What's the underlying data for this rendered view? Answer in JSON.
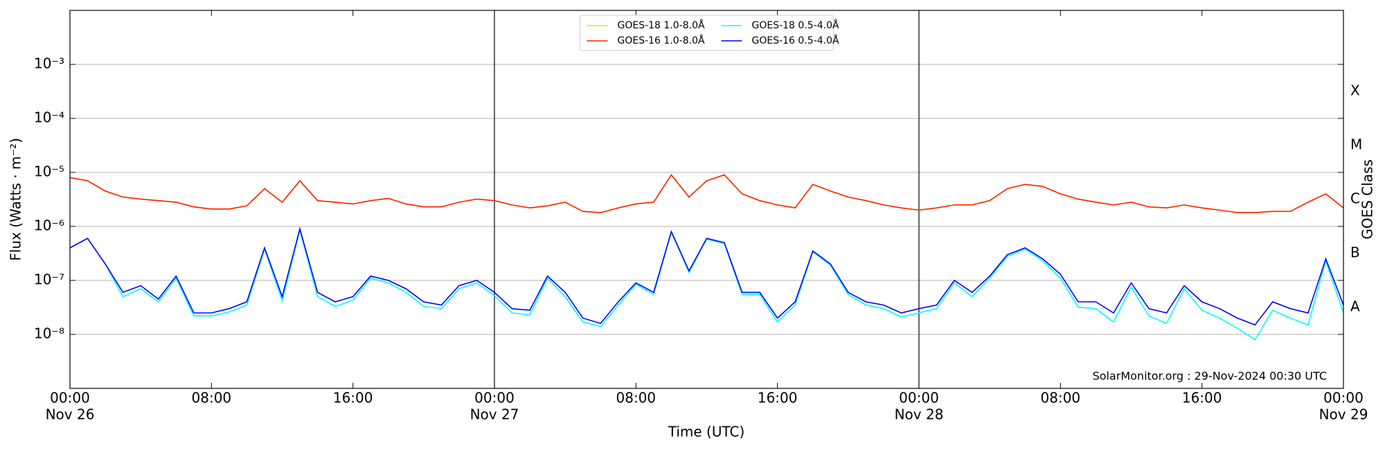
{
  "chart_data": {
    "type": "line",
    "xlabel": "Time (UTC)",
    "ylabel": "Flux (Watts · m⁻²)",
    "y2label": "GOES Class",
    "annotation": "SolarMonitor.org : 29-Nov-2024 00:30 UTC",
    "log_y": true,
    "grid": true,
    "legend": "upper center",
    "xlim": [
      0,
      72
    ],
    "xticks": [
      {
        "value": 0,
        "label": "00:00",
        "date": "Nov 26"
      },
      {
        "value": 8,
        "label": "08:00"
      },
      {
        "value": 16,
        "label": "16:00"
      },
      {
        "value": 24,
        "label": "00:00",
        "date": "Nov 27"
      },
      {
        "value": 32,
        "label": "08:00"
      },
      {
        "value": 40,
        "label": "16:00"
      },
      {
        "value": 48,
        "label": "00:00",
        "date": "Nov 28"
      },
      {
        "value": 56,
        "label": "08:00"
      },
      {
        "value": 64,
        "label": "16:00"
      },
      {
        "value": 72,
        "label": "00:00",
        "date": "Nov 29"
      }
    ],
    "day_lines": [
      24,
      48
    ],
    "ylim": [
      1e-09,
      0.01
    ],
    "yticks": [
      {
        "value": 1e-08,
        "label": "10⁻⁸"
      },
      {
        "value": 1e-07,
        "label": "10⁻⁷"
      },
      {
        "value": 1e-06,
        "label": "10⁻⁶"
      },
      {
        "value": 1e-05,
        "label": "10⁻⁵"
      },
      {
        "value": 0.0001,
        "label": "10⁻⁴"
      },
      {
        "value": 0.001,
        "label": "10⁻³"
      }
    ],
    "class_labels": [
      {
        "value": 3.16e-08,
        "label": "A"
      },
      {
        "value": 3.16e-07,
        "label": "B"
      },
      {
        "value": 3.16e-06,
        "label": "C"
      },
      {
        "value": 3.16e-05,
        "label": "M"
      },
      {
        "value": 0.000316,
        "label": "X"
      }
    ],
    "x": [
      0,
      1,
      2,
      3,
      4,
      5,
      6,
      7,
      8,
      9,
      10,
      11,
      12,
      13,
      14,
      15,
      16,
      17,
      18,
      19,
      20,
      21,
      22,
      23,
      24,
      25,
      26,
      27,
      28,
      29,
      30,
      31,
      32,
      33,
      34,
      35,
      36,
      37,
      38,
      39,
      40,
      41,
      42,
      43,
      44,
      45,
      46,
      47,
      48,
      49,
      50,
      51,
      52,
      53,
      54,
      55,
      56,
      57,
      58,
      59,
      60,
      61,
      62,
      63,
      64,
      65,
      66,
      67,
      68,
      69,
      70,
      71,
      72
    ],
    "series": [
      {
        "name": "GOES-18 1.0-8.0Å",
        "color": "#ffd700",
        "values": [
          8e-06,
          7e-06,
          4.5e-06,
          3.5e-06,
          3.2e-06,
          3e-06,
          2.8e-06,
          2.3e-06,
          2.1e-06,
          2.1e-06,
          2.4e-06,
          5e-06,
          2.8e-06,
          7e-06,
          3e-06,
          2.8e-06,
          2.6e-06,
          3e-06,
          3.3e-06,
          2.6e-06,
          2.3e-06,
          2.3e-06,
          2.8e-06,
          3.2e-06,
          3e-06,
          2.5e-06,
          2.2e-06,
          2.4e-06,
          2.8e-06,
          1.9e-06,
          1.8e-06,
          2.2e-06,
          2.6e-06,
          2.8e-06,
          9e-06,
          3.5e-06,
          7e-06,
          9e-06,
          4e-06,
          3e-06,
          2.5e-06,
          2.2e-06,
          6e-06,
          4.5e-06,
          3.5e-06,
          3e-06,
          2.5e-06,
          2.2e-06,
          2e-06,
          2.2e-06,
          2.5e-06,
          2.5e-06,
          3e-06,
          5e-06,
          6e-06,
          5.5e-06,
          4e-06,
          3.2e-06,
          2.8e-06,
          2.5e-06,
          2.8e-06,
          2.3e-06,
          2.2e-06,
          2.5e-06,
          2.2e-06,
          2e-06,
          1.8e-06,
          1.8e-06,
          1.9e-06,
          1.9e-06,
          2.8e-06,
          4e-06,
          2.2e-06
        ]
      },
      {
        "name": "GOES-16 1.0-8.0Å",
        "color": "#ff2000",
        "values": [
          8e-06,
          7e-06,
          4.5e-06,
          3.5e-06,
          3.2e-06,
          3e-06,
          2.8e-06,
          2.3e-06,
          2.1e-06,
          2.1e-06,
          2.4e-06,
          5e-06,
          2.8e-06,
          7e-06,
          3e-06,
          2.8e-06,
          2.6e-06,
          3e-06,
          3.3e-06,
          2.6e-06,
          2.3e-06,
          2.3e-06,
          2.8e-06,
          3.2e-06,
          3e-06,
          2.5e-06,
          2.2e-06,
          2.4e-06,
          2.8e-06,
          1.9e-06,
          1.8e-06,
          2.2e-06,
          2.6e-06,
          2.8e-06,
          9e-06,
          3.5e-06,
          7e-06,
          9e-06,
          4e-06,
          3e-06,
          2.5e-06,
          2.2e-06,
          6e-06,
          4.5e-06,
          3.5e-06,
          3e-06,
          2.5e-06,
          2.2e-06,
          2e-06,
          2.2e-06,
          2.5e-06,
          2.5e-06,
          3e-06,
          5e-06,
          6e-06,
          5.5e-06,
          4e-06,
          3.2e-06,
          2.8e-06,
          2.5e-06,
          2.8e-06,
          2.3e-06,
          2.2e-06,
          2.5e-06,
          2.2e-06,
          2e-06,
          1.8e-06,
          1.8e-06,
          1.9e-06,
          1.9e-06,
          2.8e-06,
          4e-06,
          2.2e-06
        ]
      },
      {
        "name": "GOES-18 0.5-4.0Å",
        "color": "#00ffff",
        "values": [
          4e-07,
          6e-07,
          2e-07,
          5e-08,
          7e-08,
          4e-08,
          1.1e-07,
          2.2e-08,
          2.2e-08,
          2.6e-08,
          3.5e-08,
          3.8e-07,
          4.2e-08,
          8.5e-07,
          5e-08,
          3.3e-08,
          4.3e-08,
          1.1e-07,
          9e-08,
          6e-08,
          3.3e-08,
          3e-08,
          7e-08,
          9e-08,
          5.2e-08,
          2.5e-08,
          2.3e-08,
          1.1e-07,
          5e-08,
          1.7e-08,
          1.4e-08,
          3.5e-08,
          8.5e-08,
          5.5e-08,
          7.8e-07,
          1.4e-07,
          5.8e-07,
          4.8e-07,
          5.5e-08,
          5.5e-08,
          1.7e-08,
          3.5e-08,
          3.4e-07,
          1.9e-07,
          5.5e-08,
          3.5e-08,
          3e-08,
          2.1e-08,
          2.5e-08,
          3e-08,
          9e-08,
          5e-08,
          1.1e-07,
          2.8e-07,
          3.8e-07,
          2.3e-07,
          1.1e-07,
          3.2e-08,
          3e-08,
          1.7e-08,
          7.5e-08,
          2.2e-08,
          1.6e-08,
          7e-08,
          2.8e-08,
          2e-08,
          1.3e-08,
          8e-09,
          2.8e-08,
          2e-08,
          1.5e-08,
          2.3e-07,
          2.5e-08
        ]
      },
      {
        "name": "GOES-16 0.5-4.0Å",
        "color": "#0000ff",
        "values": [
          4e-07,
          6e-07,
          2e-07,
          6e-08,
          8e-08,
          4.5e-08,
          1.2e-07,
          2.5e-08,
          2.5e-08,
          3e-08,
          4e-08,
          4e-07,
          5e-08,
          9e-07,
          6e-08,
          4e-08,
          5e-08,
          1.2e-07,
          1e-07,
          7e-08,
          4e-08,
          3.5e-08,
          8e-08,
          1e-07,
          6e-08,
          3e-08,
          2.8e-08,
          1.2e-07,
          6e-08,
          2e-08,
          1.6e-08,
          4e-08,
          9e-08,
          6e-08,
          8e-07,
          1.5e-07,
          6e-07,
          5e-07,
          6e-08,
          6e-08,
          2e-08,
          4e-08,
          3.5e-07,
          2e-07,
          6e-08,
          4e-08,
          3.5e-08,
          2.5e-08,
          3e-08,
          3.5e-08,
          1e-07,
          6e-08,
          1.2e-07,
          3e-07,
          4e-07,
          2.5e-07,
          1.3e-07,
          4e-08,
          4e-08,
          2.5e-08,
          9e-08,
          3e-08,
          2.5e-08,
          8e-08,
          4e-08,
          3e-08,
          2e-08,
          1.5e-08,
          4e-08,
          3e-08,
          2.5e-08,
          2.5e-07,
          3.5e-08
        ]
      }
    ]
  }
}
